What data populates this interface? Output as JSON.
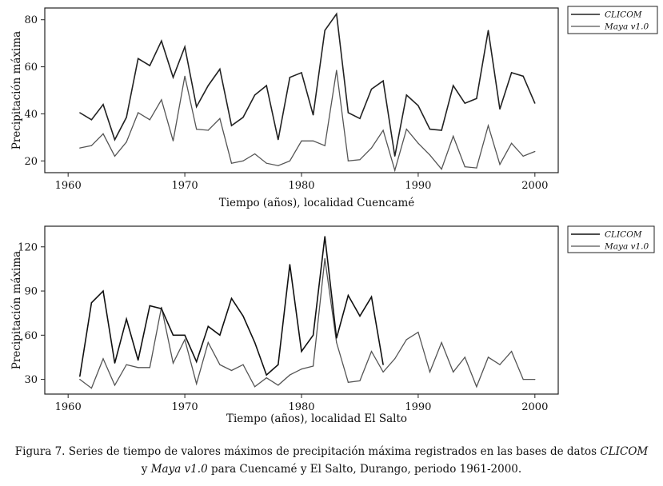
{
  "chart_data": [
    {
      "type": "line",
      "title": "",
      "xlabel": "Tiempo (años), localidad Cuencamé",
      "ylabel": "Precipitación máxima",
      "xlim": [
        1958,
        2002
      ],
      "ylim": [
        15,
        85
      ],
      "xticks": [
        "1960",
        "1970",
        "1980",
        "1990",
        "2000"
      ],
      "yticks": [
        "20",
        "40",
        "60",
        "80"
      ],
      "legend": "top-right",
      "series": [
        {
          "name": "CLICOM",
          "color": "#222222",
          "x": [
            1961,
            1962,
            1963,
            1964,
            1965,
            1966,
            1967,
            1968,
            1969,
            1970,
            1971,
            1972,
            1973,
            1974,
            1975,
            1976,
            1977,
            1978,
            1979,
            1980,
            1981,
            1982,
            1983,
            1984,
            1985,
            1986,
            1987,
            1988,
            1989,
            1990,
            1991,
            1992,
            1993,
            1994,
            1995,
            1996,
            1997,
            1998,
            1999,
            2000
          ],
          "values": [
            40.5,
            37.5,
            44,
            29,
            38.5,
            63.5,
            60.5,
            71,
            55.5,
            68.5,
            43,
            52,
            59,
            35,
            38.5,
            48,
            52,
            29,
            55.5,
            57.5,
            39.5,
            75.5,
            82.5,
            40.5,
            38,
            50.5,
            54,
            22,
            48,
            43.5,
            33.5,
            33,
            52,
            44.5,
            46.5,
            75.5,
            42,
            57.5,
            56,
            44.5
          ]
        },
        {
          "name": "Maya v1.0",
          "color": "#555555",
          "x": [
            1961,
            1962,
            1963,
            1964,
            1965,
            1966,
            1967,
            1968,
            1969,
            1970,
            1971,
            1972,
            1973,
            1974,
            1975,
            1976,
            1977,
            1978,
            1979,
            1980,
            1981,
            1982,
            1983,
            1984,
            1985,
            1986,
            1987,
            1988,
            1989,
            1990,
            1991,
            1992,
            1993,
            1994,
            1995,
            1996,
            1997,
            1998,
            1999,
            2000
          ],
          "values": [
            25.5,
            26.5,
            31.5,
            22,
            28,
            40.5,
            37.5,
            46,
            28.5,
            56,
            33.5,
            33,
            38,
            19,
            20,
            23,
            19,
            18,
            20,
            28.5,
            28.5,
            26.5,
            58.5,
            20,
            20.5,
            25.5,
            33,
            16,
            33.5,
            27.5,
            22.5,
            16.5,
            30.5,
            17.5,
            17,
            35,
            18.5,
            27.5,
            22,
            24
          ]
        }
      ]
    },
    {
      "type": "line",
      "title": "",
      "xlabel": "Tiempo (años), localidad El Salto",
      "ylabel": "Precipitación máxima",
      "xlim": [
        1958,
        2002
      ],
      "ylim": [
        20,
        134
      ],
      "xticks": [
        "1960",
        "1970",
        "1980",
        "1990",
        "2000"
      ],
      "yticks": [
        "30",
        "60",
        "90",
        "120"
      ],
      "legend": "top-right",
      "series": [
        {
          "name": "CLICOM",
          "color": "#111111",
          "x": [
            1961,
            1962,
            1963,
            1964,
            1965,
            1966,
            1967,
            1968,
            1969,
            1970,
            1971,
            1972,
            1973,
            1974,
            1975,
            1976,
            1977,
            1978,
            1979,
            1980,
            1981,
            1982,
            1983,
            1984,
            1985,
            1986,
            1987
          ],
          "values": [
            32,
            82,
            90,
            41,
            71,
            43,
            80,
            78,
            60,
            60,
            42,
            66,
            60,
            85,
            73,
            55,
            33,
            40,
            108,
            49,
            60,
            127,
            58,
            87,
            73,
            86,
            40
          ]
        },
        {
          "name": "Maya v1.0",
          "color": "#555555",
          "x": [
            1961,
            1962,
            1963,
            1964,
            1965,
            1966,
            1967,
            1968,
            1969,
            1970,
            1971,
            1972,
            1973,
            1974,
            1975,
            1976,
            1977,
            1978,
            1979,
            1980,
            1981,
            1982,
            1983,
            1984,
            1985,
            1986,
            1987,
            1988,
            1989,
            1990,
            1991,
            1992,
            1993,
            1994,
            1995,
            1996,
            1997,
            1998,
            1999,
            2000
          ],
          "values": [
            30,
            24,
            44,
            26,
            40,
            38,
            38,
            79,
            41,
            57,
            27,
            55,
            40,
            36,
            40,
            25,
            31,
            26,
            33,
            37,
            39,
            112,
            55,
            28,
            29,
            49,
            35,
            44,
            57,
            62,
            35,
            55,
            35,
            45,
            25,
            45,
            40,
            49,
            30,
            30
          ]
        }
      ]
    }
  ],
  "legend_labels": [
    "CLICOM",
    "Maya v1.0"
  ],
  "caption": {
    "prefix": "Figura 7. Series de tiempo de valores máximos de precipitación máxima registrados en las bases de datos ",
    "clicom": "CLICOM",
    "joiner": "y ",
    "maya": "Maya v1.0",
    "suffix": " para Cuencamé y El Salto, Durango, periodo 1961-2000."
  }
}
